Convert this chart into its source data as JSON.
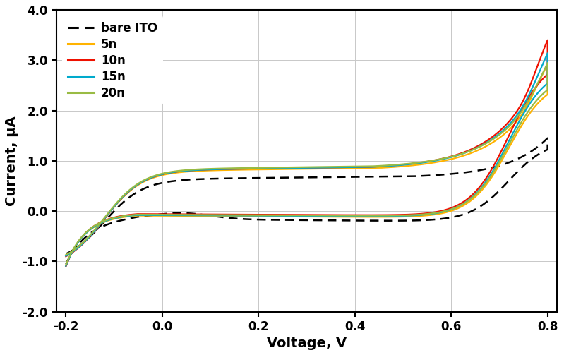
{
  "xlabel": "Voltage, V",
  "ylabel": "Current, μA",
  "xlim": [
    -0.22,
    0.82
  ],
  "ylim": [
    -2.0,
    4.0
  ],
  "xticks": [
    -0.2,
    0.0,
    0.2,
    0.4,
    0.6,
    0.8
  ],
  "yticks": [
    -2.0,
    -1.0,
    0.0,
    1.0,
    2.0,
    3.0,
    4.0
  ],
  "grid_color": "#c8c8c8",
  "background_color": "#ffffff",
  "series": [
    {
      "label": "bare ITO",
      "color": "#000000",
      "linestyle": "--",
      "linewidth": 1.8,
      "dashes": [
        5,
        3
      ]
    },
    {
      "label": "5n",
      "color": "#FFB300",
      "linestyle": "-",
      "linewidth": 1.6
    },
    {
      "label": "10n",
      "color": "#EE1100",
      "linestyle": "-",
      "linewidth": 1.6
    },
    {
      "label": "15n",
      "color": "#00AACC",
      "linestyle": "-",
      "linewidth": 1.6
    },
    {
      "label": "20n",
      "color": "#99BB44",
      "linestyle": "-",
      "linewidth": 1.6
    }
  ],
  "legend_fontsize": 12,
  "axis_label_fontsize": 14,
  "tick_fontsize": 12,
  "tick_fontweight": "bold",
  "label_fontweight": "bold"
}
